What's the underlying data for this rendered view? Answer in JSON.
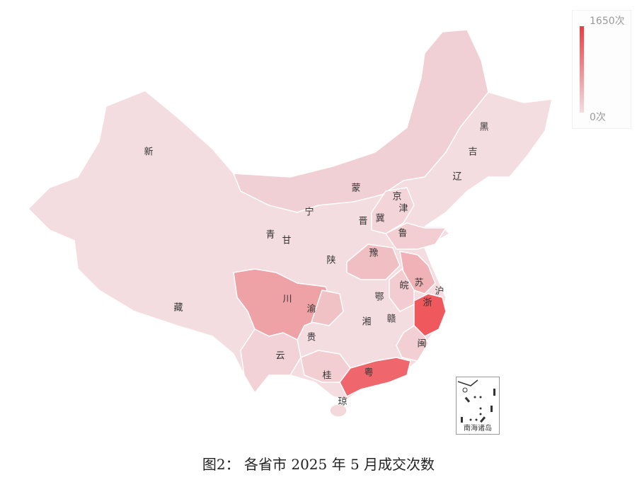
{
  "legend": {
    "max_label": "1650次",
    "min_label": "0次",
    "max_value": 1650,
    "min_value": 0,
    "color_high": "#ef3a40",
    "color_low": "#f4dde1"
  },
  "map": {
    "provinces": [
      {
        "label": "新",
        "shade": "#f4dde1"
      },
      {
        "label": "藏",
        "shade": "#f4dde1"
      },
      {
        "label": "青",
        "shade": "#f4dde1"
      },
      {
        "label": "甘",
        "shade": "#f4dde1"
      },
      {
        "label": "宁",
        "shade": "#f4dde1"
      },
      {
        "label": "蒙",
        "shade": "#f0d0d5"
      },
      {
        "label": "黑",
        "shade": "#f4dde1"
      },
      {
        "label": "吉",
        "shade": "#f4dde1"
      },
      {
        "label": "辽",
        "shade": "#f3d8dc"
      },
      {
        "label": "京",
        "shade": "#f3d8dc"
      },
      {
        "label": "津",
        "shade": "#f3d8dc"
      },
      {
        "label": "冀",
        "shade": "#f3d4d8"
      },
      {
        "label": "晋",
        "shade": "#f4dde1"
      },
      {
        "label": "鲁",
        "shade": "#f2cdd1"
      },
      {
        "label": "陕",
        "shade": "#f4dde1"
      },
      {
        "label": "豫",
        "shade": "#f0bfc3"
      },
      {
        "label": "苏",
        "shade": "#f0b2b6"
      },
      {
        "label": "沪",
        "shade": "#f0c5c9"
      },
      {
        "label": "皖",
        "shade": "#f2ccd0"
      },
      {
        "label": "浙",
        "shade": "#ef585d"
      },
      {
        "label": "川",
        "shade": "#eea2a6"
      },
      {
        "label": "渝",
        "shade": "#f0c2c6"
      },
      {
        "label": "鄂",
        "shade": "#f3d6da"
      },
      {
        "label": "湘",
        "shade": "#f3d8dc"
      },
      {
        "label": "赣",
        "shade": "#f3d8dc"
      },
      {
        "label": "闽",
        "shade": "#f2cfd3"
      },
      {
        "label": "贵",
        "shade": "#f4dde1"
      },
      {
        "label": "云",
        "shade": "#f2d2d6"
      },
      {
        "label": "桂",
        "shade": "#f2cdd1"
      },
      {
        "label": "粤",
        "shade": "#ef676c"
      },
      {
        "label": "琼",
        "shade": "#f3d8dc"
      }
    ],
    "inset_label": "南海诸岛"
  },
  "caption": "图2：    各省市 2025 年 5 月成交次数"
}
